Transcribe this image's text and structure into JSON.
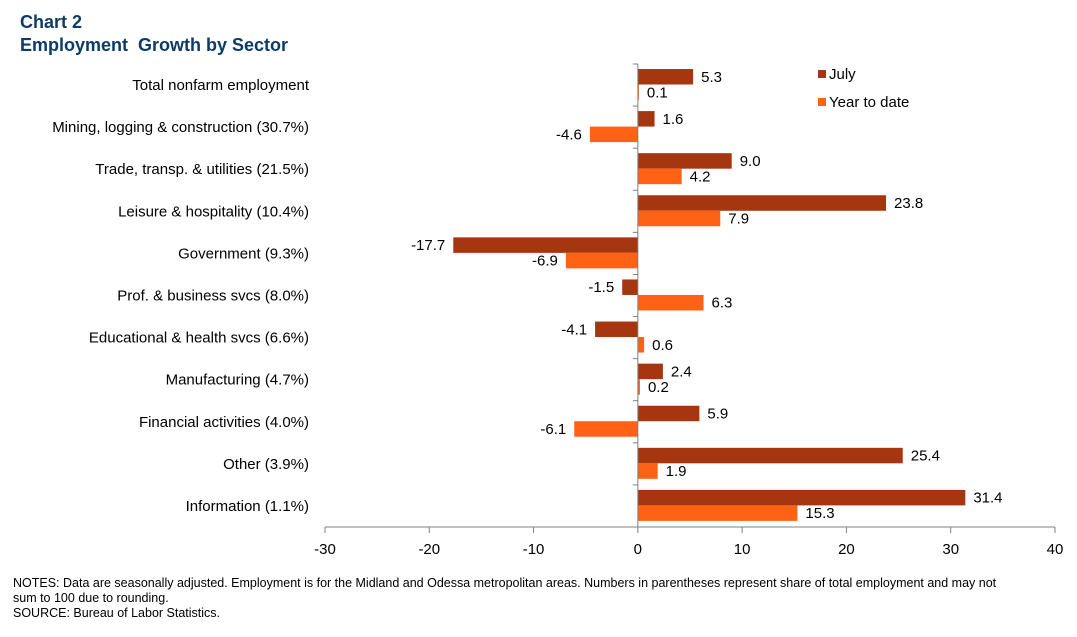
{
  "header": {
    "chart_number": "Chart 2",
    "title": "Employment  Growth by Sector"
  },
  "footer": {
    "notes": "NOTES:  Data are seasonally adjusted. Employment  is for the Midland and Odessa metropolitan  areas. Numbers  in parentheses represent share of total employment  and may not sum to 100 due to rounding.",
    "source": "SOURCE:  Bureau of Labor Statistics."
  },
  "colors": {
    "july": "#A5360F",
    "ytd": "#FF6214",
    "axis": "#808080"
  },
  "chart_data": {
    "type": "bar",
    "orientation": "horizontal",
    "title": "Employment  Growth by Sector",
    "categories": [
      "Total nonfarm employment",
      "Mining, logging & construction (30.7%)",
      "Trade, transp. & utilities (21.5%)",
      "Leisure & hospitality (10.4%)",
      "Government (9.3%)",
      "Prof. & business svcs (8.0%)",
      "Educational & health svcs (6.6%)",
      "Manufacturing (4.7%)",
      "Financial activities (4.0%)",
      "Other (3.9%)",
      "Information (1.1%)"
    ],
    "series": [
      {
        "name": "July",
        "values": [
          5.3,
          1.6,
          9.0,
          23.8,
          -17.7,
          -1.5,
          -4.1,
          2.4,
          5.9,
          25.4,
          31.4
        ],
        "labels": [
          "5.3",
          "1.6",
          "9.0",
          "23.8",
          "-17.7",
          "-1.5",
          "-4.1",
          "2.4",
          "5.9",
          "25.4",
          "31.4"
        ]
      },
      {
        "name": "Year to date",
        "values": [
          0.1,
          -4.6,
          4.2,
          7.9,
          -6.9,
          6.3,
          0.6,
          0.2,
          -6.1,
          1.9,
          15.3
        ],
        "labels": [
          "0.1",
          "-4.6",
          "4.2",
          "7.9",
          "-6.9",
          "6.3",
          "0.6",
          "0.2",
          "-6.1",
          "1.9",
          "15.3"
        ]
      }
    ],
    "xlim": [
      -30,
      40
    ],
    "xticks": [
      -30,
      -20,
      -10,
      0,
      10,
      20,
      30,
      40
    ],
    "xtick_labels": [
      "-30",
      "-20",
      "-10",
      "0",
      "10",
      "20",
      "30",
      "40"
    ],
    "grid": false,
    "legend_position": "top-right"
  }
}
